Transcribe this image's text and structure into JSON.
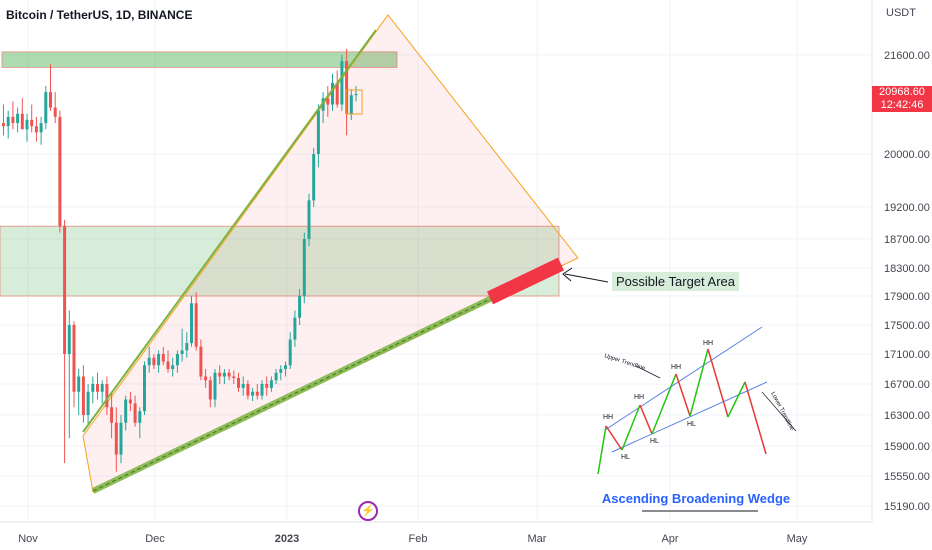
{
  "header": {
    "title": "Bitcoin / TetherUS, 1D, BINANCE"
  },
  "price_axis": {
    "currency": "USDT",
    "ticks": [
      "21600.00",
      "20000.00",
      "19200.00",
      "18700.00",
      "18300.00",
      "17900.00",
      "17500.00",
      "17100.00",
      "16700.00",
      "16300.00",
      "15900.00",
      "15550.00",
      "15190.00"
    ]
  },
  "last_price": {
    "value": "20968.60",
    "countdown": "12:42:46",
    "color": "#f23645"
  },
  "time_axis": {
    "ticks": [
      "Nov",
      "Dec",
      "2023",
      "Feb",
      "Mar",
      "Apr",
      "May"
    ]
  },
  "annotation": {
    "target_label": "Possible Target Area"
  },
  "inset": {
    "title": "Ascending Broadening Wedge",
    "upper_label": "Upper Trendline",
    "lower_label": "Lower Trendline",
    "hh_label": "HH",
    "hl_label": "HL"
  },
  "colors": {
    "up": "#26a69a",
    "down": "#ef5350",
    "zone": "#4caf50",
    "wedge": "#f7a21b",
    "target": "#f23645",
    "inset_line": "#5b7fe0"
  },
  "chart_data": {
    "type": "candlestick",
    "title": "Bitcoin / TetherUS, 1D, BINANCE",
    "y_unit": "USDT",
    "ylim": [
      15100,
      22300
    ],
    "x_ticks": [
      "Nov",
      "Dec",
      "2023",
      "Feb",
      "Mar",
      "Apr",
      "May"
    ],
    "candles": [
      {
        "o": 20500,
        "h": 20800,
        "l": 20300,
        "c": 20450
      },
      {
        "o": 20450,
        "h": 20700,
        "l": 20250,
        "c": 20600
      },
      {
        "o": 20600,
        "h": 20850,
        "l": 20400,
        "c": 20500
      },
      {
        "o": 20500,
        "h": 20750,
        "l": 20350,
        "c": 20650
      },
      {
        "o": 20650,
        "h": 20900,
        "l": 20450,
        "c": 20400
      },
      {
        "o": 20400,
        "h": 20650,
        "l": 20200,
        "c": 20550
      },
      {
        "o": 20550,
        "h": 20800,
        "l": 20350,
        "c": 20450
      },
      {
        "o": 20450,
        "h": 20600,
        "l": 20200,
        "c": 20350
      },
      {
        "o": 20350,
        "h": 20600,
        "l": 20150,
        "c": 20500
      },
      {
        "o": 20500,
        "h": 21100,
        "l": 20400,
        "c": 21000
      },
      {
        "o": 21000,
        "h": 21450,
        "l": 20700,
        "c": 20750
      },
      {
        "o": 20750,
        "h": 21000,
        "l": 20500,
        "c": 20600
      },
      {
        "o": 20600,
        "h": 20700,
        "l": 18800,
        "c": 18900
      },
      {
        "o": 18900,
        "h": 19000,
        "l": 15700,
        "c": 17100
      },
      {
        "o": 17100,
        "h": 17700,
        "l": 16000,
        "c": 17500
      },
      {
        "o": 17500,
        "h": 17550,
        "l": 16400,
        "c": 16600
      },
      {
        "o": 16600,
        "h": 16900,
        "l": 16300,
        "c": 16800
      },
      {
        "o": 16800,
        "h": 16950,
        "l": 16200,
        "c": 16300
      },
      {
        "o": 16300,
        "h": 16700,
        "l": 16150,
        "c": 16600
      },
      {
        "o": 16600,
        "h": 16800,
        "l": 16450,
        "c": 16700
      },
      {
        "o": 16700,
        "h": 16850,
        "l": 16500,
        "c": 16600
      },
      {
        "o": 16600,
        "h": 16750,
        "l": 16450,
        "c": 16700
      },
      {
        "o": 16700,
        "h": 16800,
        "l": 16300,
        "c": 16400
      },
      {
        "o": 16400,
        "h": 16600,
        "l": 16000,
        "c": 16200
      },
      {
        "o": 16200,
        "h": 16400,
        "l": 15600,
        "c": 15800
      },
      {
        "o": 15800,
        "h": 16300,
        "l": 15700,
        "c": 16200
      },
      {
        "o": 16200,
        "h": 16550,
        "l": 16100,
        "c": 16500
      },
      {
        "o": 16500,
        "h": 16600,
        "l": 16350,
        "c": 16450
      },
      {
        "o": 16450,
        "h": 16550,
        "l": 16150,
        "c": 16200
      },
      {
        "o": 16200,
        "h": 16400,
        "l": 16000,
        "c": 16350
      },
      {
        "o": 16350,
        "h": 17000,
        "l": 16300,
        "c": 16950
      },
      {
        "o": 16950,
        "h": 17200,
        "l": 16850,
        "c": 17050
      },
      {
        "o": 17050,
        "h": 17100,
        "l": 16900,
        "c": 16950
      },
      {
        "o": 16950,
        "h": 17150,
        "l": 16850,
        "c": 17100
      },
      {
        "o": 17100,
        "h": 17200,
        "l": 16950,
        "c": 17000
      },
      {
        "o": 17000,
        "h": 17150,
        "l": 16850,
        "c": 16900
      },
      {
        "o": 16900,
        "h": 17050,
        "l": 16800,
        "c": 16950
      },
      {
        "o": 16950,
        "h": 17150,
        "l": 16850,
        "c": 17100
      },
      {
        "o": 17100,
        "h": 17450,
        "l": 17000,
        "c": 17150
      },
      {
        "o": 17150,
        "h": 17400,
        "l": 17050,
        "c": 17250
      },
      {
        "o": 17250,
        "h": 17900,
        "l": 17200,
        "c": 17800
      },
      {
        "o": 17800,
        "h": 17950,
        "l": 17150,
        "c": 17200
      },
      {
        "o": 17200,
        "h": 17300,
        "l": 16750,
        "c": 16800
      },
      {
        "o": 16800,
        "h": 16900,
        "l": 16650,
        "c": 16750
      },
      {
        "o": 16750,
        "h": 16800,
        "l": 16400,
        "c": 16500
      },
      {
        "o": 16500,
        "h": 16900,
        "l": 16400,
        "c": 16850
      },
      {
        "o": 16850,
        "h": 16950,
        "l": 16700,
        "c": 16800
      },
      {
        "o": 16800,
        "h": 16900,
        "l": 16700,
        "c": 16850
      },
      {
        "o": 16850,
        "h": 16900,
        "l": 16750,
        "c": 16800
      },
      {
        "o": 16800,
        "h": 16880,
        "l": 16700,
        "c": 16780
      },
      {
        "o": 16780,
        "h": 16850,
        "l": 16600,
        "c": 16650
      },
      {
        "o": 16650,
        "h": 16800,
        "l": 16550,
        "c": 16700
      },
      {
        "o": 16700,
        "h": 16750,
        "l": 16500,
        "c": 16550
      },
      {
        "o": 16550,
        "h": 16650,
        "l": 16480,
        "c": 16600
      },
      {
        "o": 16600,
        "h": 16700,
        "l": 16500,
        "c": 16550
      },
      {
        "o": 16550,
        "h": 16750,
        "l": 16500,
        "c": 16700
      },
      {
        "o": 16700,
        "h": 16800,
        "l": 16550,
        "c": 16650
      },
      {
        "o": 16650,
        "h": 16800,
        "l": 16600,
        "c": 16750
      },
      {
        "o": 16750,
        "h": 16900,
        "l": 16700,
        "c": 16850
      },
      {
        "o": 16850,
        "h": 16950,
        "l": 16750,
        "c": 16900
      },
      {
        "o": 16900,
        "h": 17000,
        "l": 16800,
        "c": 16950
      },
      {
        "o": 16950,
        "h": 17400,
        "l": 16900,
        "c": 17300
      },
      {
        "o": 17300,
        "h": 17700,
        "l": 17200,
        "c": 17600
      },
      {
        "o": 17600,
        "h": 18000,
        "l": 17500,
        "c": 17900
      },
      {
        "o": 17900,
        "h": 18800,
        "l": 17800,
        "c": 18700
      },
      {
        "o": 18700,
        "h": 19400,
        "l": 18600,
        "c": 19300
      },
      {
        "o": 19300,
        "h": 20100,
        "l": 19200,
        "c": 20000
      },
      {
        "o": 20000,
        "h": 20800,
        "l": 19800,
        "c": 20700
      },
      {
        "o": 20700,
        "h": 21000,
        "l": 20500,
        "c": 20900
      },
      {
        "o": 20900,
        "h": 21100,
        "l": 20600,
        "c": 20800
      },
      {
        "o": 20800,
        "h": 21300,
        "l": 20700,
        "c": 21150
      },
      {
        "o": 21150,
        "h": 21350,
        "l": 20750,
        "c": 20800
      },
      {
        "o": 20800,
        "h": 21600,
        "l": 20700,
        "c": 21500
      },
      {
        "o": 21500,
        "h": 21700,
        "l": 20300,
        "c": 20650
      },
      {
        "o": 20650,
        "h": 21050,
        "l": 20550,
        "c": 20950
      },
      {
        "o": 20950,
        "h": 21100,
        "l": 20850,
        "c": 20968.6
      }
    ],
    "zones": [
      {
        "from": 21400,
        "to": 21650
      },
      {
        "from": 17900,
        "to": 18900
      }
    ],
    "target_area": "Possible Target Area"
  }
}
